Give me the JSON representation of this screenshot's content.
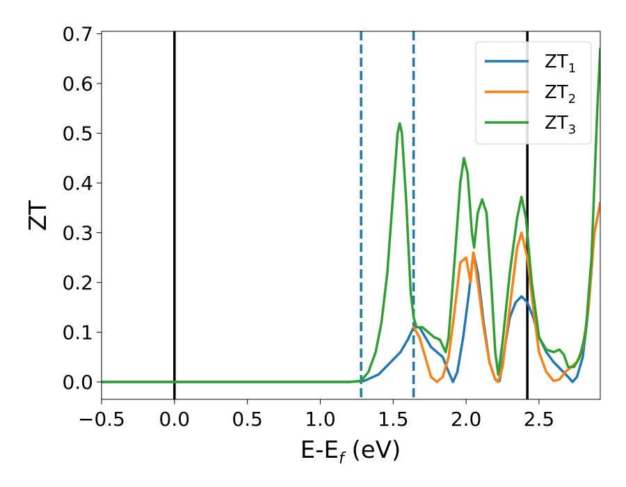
{
  "chart_data": {
    "type": "line",
    "title": "",
    "xlabel": "E-E",
    "xlabel_sub": "f",
    "xlabel_unit": " (eV)",
    "ylabel": "ZT",
    "xlim": [
      -0.5,
      2.92
    ],
    "ylim": [
      -0.035,
      0.705
    ],
    "xticks": [
      -0.5,
      0.0,
      0.5,
      1.0,
      1.5,
      2.0,
      2.5
    ],
    "xtick_labels": [
      "−0.5",
      "0.0",
      "0.5",
      "1.0",
      "1.5",
      "2.0",
      "2.5"
    ],
    "yticks": [
      0.0,
      0.1,
      0.2,
      0.3,
      0.4,
      0.5,
      0.6,
      0.7
    ],
    "ytick_labels": [
      "0.0",
      "0.1",
      "0.2",
      "0.3",
      "0.4",
      "0.5",
      "0.6",
      "0.7"
    ],
    "grid": false,
    "legend_position": "top-right",
    "legend": [
      {
        "base": "ZT",
        "sub": "1",
        "color": "#1f77b4"
      },
      {
        "base": "ZT",
        "sub": "2",
        "color": "#ff7f0e"
      },
      {
        "base": "ZT",
        "sub": "3",
        "color": "#2ca02c"
      }
    ],
    "vlines": [
      {
        "x": 0.0,
        "style": "solid",
        "color": "#000000"
      },
      {
        "x": 2.42,
        "style": "solid",
        "color": "#000000"
      },
      {
        "x": 1.28,
        "style": "dashed",
        "color": "#1f77b4"
      },
      {
        "x": 1.64,
        "style": "dashed",
        "color": "#1f77b4"
      }
    ],
    "series": [
      {
        "color": "#1f77b4",
        "points": [
          [
            -0.5,
            0
          ],
          [
            1.2,
            0
          ],
          [
            1.3,
            0.002
          ],
          [
            1.4,
            0.015
          ],
          [
            1.5,
            0.045
          ],
          [
            1.55,
            0.06
          ],
          [
            1.6,
            0.085
          ],
          [
            1.64,
            0.11
          ],
          [
            1.68,
            0.11
          ],
          [
            1.72,
            0.09
          ],
          [
            1.76,
            0.07
          ],
          [
            1.8,
            0.06
          ],
          [
            1.84,
            0.05
          ],
          [
            1.88,
            0.02
          ],
          [
            1.91,
            0
          ],
          [
            1.94,
            0.02
          ],
          [
            1.98,
            0.09
          ],
          [
            2.02,
            0.18
          ],
          [
            2.05,
            0.26
          ],
          [
            2.08,
            0.22
          ],
          [
            2.12,
            0.12
          ],
          [
            2.16,
            0.04
          ],
          [
            2.2,
            0.005
          ],
          [
            2.23,
            0.002
          ],
          [
            2.26,
            0.06
          ],
          [
            2.3,
            0.13
          ],
          [
            2.34,
            0.16
          ],
          [
            2.38,
            0.172
          ],
          [
            2.42,
            0.16
          ],
          [
            2.46,
            0.13
          ],
          [
            2.5,
            0.09
          ],
          [
            2.55,
            0.06
          ],
          [
            2.6,
            0.04
          ],
          [
            2.65,
            0.025
          ],
          [
            2.7,
            0.01
          ],
          [
            2.73,
            0
          ],
          [
            2.76,
            0.01
          ],
          [
            2.8,
            0.05
          ],
          [
            2.84,
            0.15
          ],
          [
            2.88,
            0.3
          ],
          [
            2.92,
            0.36
          ]
        ]
      },
      {
        "color": "#ff7f0e",
        "points": [
          [
            1.64,
            0.11
          ],
          [
            1.68,
            0.09
          ],
          [
            1.72,
            0.05
          ],
          [
            1.76,
            0.01
          ],
          [
            1.8,
            0
          ],
          [
            1.84,
            0.01
          ],
          [
            1.88,
            0.05
          ],
          [
            1.92,
            0.14
          ],
          [
            1.96,
            0.24
          ],
          [
            2.0,
            0.25
          ],
          [
            2.03,
            0.2
          ],
          [
            2.05,
            0.26
          ],
          [
            2.08,
            0.2
          ],
          [
            2.12,
            0.11
          ],
          [
            2.16,
            0.04
          ],
          [
            2.2,
            0.005
          ],
          [
            2.22,
            0
          ],
          [
            2.25,
            0.03
          ],
          [
            2.3,
            0.15
          ],
          [
            2.35,
            0.27
          ],
          [
            2.38,
            0.3
          ],
          [
            2.42,
            0.25
          ],
          [
            2.46,
            0.15
          ],
          [
            2.5,
            0.06
          ],
          [
            2.55,
            0.02
          ],
          [
            2.6,
            0.002
          ],
          [
            2.64,
            0.005
          ],
          [
            2.68,
            0.02
          ],
          [
            2.72,
            0.03
          ],
          [
            2.76,
            0.04
          ],
          [
            2.8,
            0.07
          ],
          [
            2.84,
            0.15
          ],
          [
            2.88,
            0.3
          ],
          [
            2.92,
            0.36
          ]
        ]
      },
      {
        "color": "#2ca02c",
        "points": [
          [
            -0.5,
            0
          ],
          [
            1.2,
            0
          ],
          [
            1.28,
            0.002
          ],
          [
            1.33,
            0.02
          ],
          [
            1.38,
            0.06
          ],
          [
            1.42,
            0.12
          ],
          [
            1.46,
            0.22
          ],
          [
            1.5,
            0.38
          ],
          [
            1.53,
            0.5
          ],
          [
            1.545,
            0.52
          ],
          [
            1.56,
            0.5
          ],
          [
            1.59,
            0.36
          ],
          [
            1.62,
            0.18
          ],
          [
            1.64,
            0.13
          ],
          [
            1.66,
            0.11
          ],
          [
            1.7,
            0.11
          ],
          [
            1.74,
            0.1
          ],
          [
            1.78,
            0.09
          ],
          [
            1.82,
            0.085
          ],
          [
            1.86,
            0.06
          ],
          [
            1.88,
            0.09
          ],
          [
            1.92,
            0.24
          ],
          [
            1.96,
            0.4
          ],
          [
            1.985,
            0.45
          ],
          [
            2.01,
            0.42
          ],
          [
            2.04,
            0.3
          ],
          [
            2.055,
            0.27
          ],
          [
            2.08,
            0.34
          ],
          [
            2.11,
            0.367
          ],
          [
            2.14,
            0.34
          ],
          [
            2.17,
            0.21
          ],
          [
            2.2,
            0.06
          ],
          [
            2.22,
            0.015
          ],
          [
            2.25,
            0.08
          ],
          [
            2.3,
            0.22
          ],
          [
            2.35,
            0.33
          ],
          [
            2.38,
            0.372
          ],
          [
            2.41,
            0.33
          ],
          [
            2.45,
            0.2
          ],
          [
            2.5,
            0.09
          ],
          [
            2.55,
            0.065
          ],
          [
            2.6,
            0.06
          ],
          [
            2.64,
            0.065
          ],
          [
            2.67,
            0.055
          ],
          [
            2.7,
            0.03
          ],
          [
            2.74,
            0.03
          ],
          [
            2.78,
            0.05
          ],
          [
            2.82,
            0.1
          ],
          [
            2.86,
            0.25
          ],
          [
            2.9,
            0.55
          ],
          [
            2.92,
            0.67
          ]
        ]
      }
    ]
  }
}
